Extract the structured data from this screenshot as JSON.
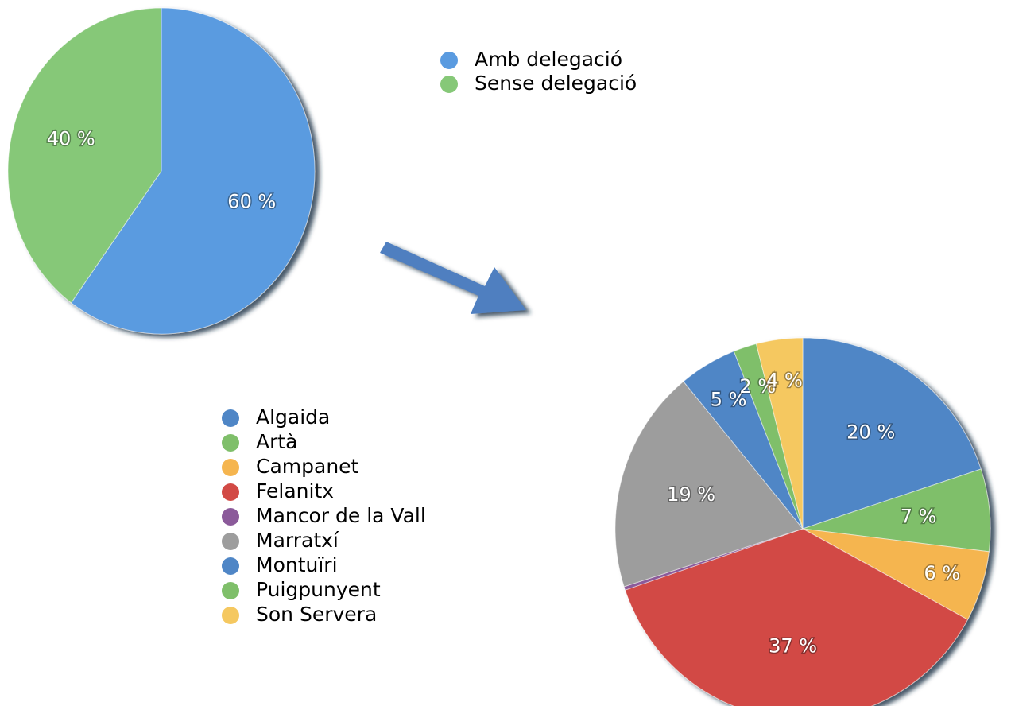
{
  "chart_data": [
    {
      "type": "pie",
      "categories": [
        "Amb delegació",
        "Sense delegació"
      ],
      "values": [
        60,
        40
      ],
      "value_labels": [
        "60 %",
        "40 %"
      ],
      "colors": [
        "#5a9be0",
        "#86c878"
      ]
    },
    {
      "type": "pie",
      "categories": [
        "Algaida",
        "Artà",
        "Campanet",
        "Felanitx",
        "Mancor de la Vall",
        "Marratxí",
        "Montuïri",
        "Puigpunyent",
        "Son Servera"
      ],
      "values": [
        20,
        7,
        6,
        37,
        0.3,
        19,
        5,
        2,
        4
      ],
      "value_labels": [
        "20 %",
        "7 %",
        "6 %",
        "37 %",
        null,
        "19 %",
        "5 %",
        "2 %",
        "4 %"
      ],
      "colors": [
        "#4f86c6",
        "#7fbf6a",
        "#f5b54f",
        "#d24a45",
        "#8b5a9a",
        "#9d9d9d",
        "#4f86c6",
        "#7fbf6a",
        "#f5c860"
      ]
    }
  ]
}
